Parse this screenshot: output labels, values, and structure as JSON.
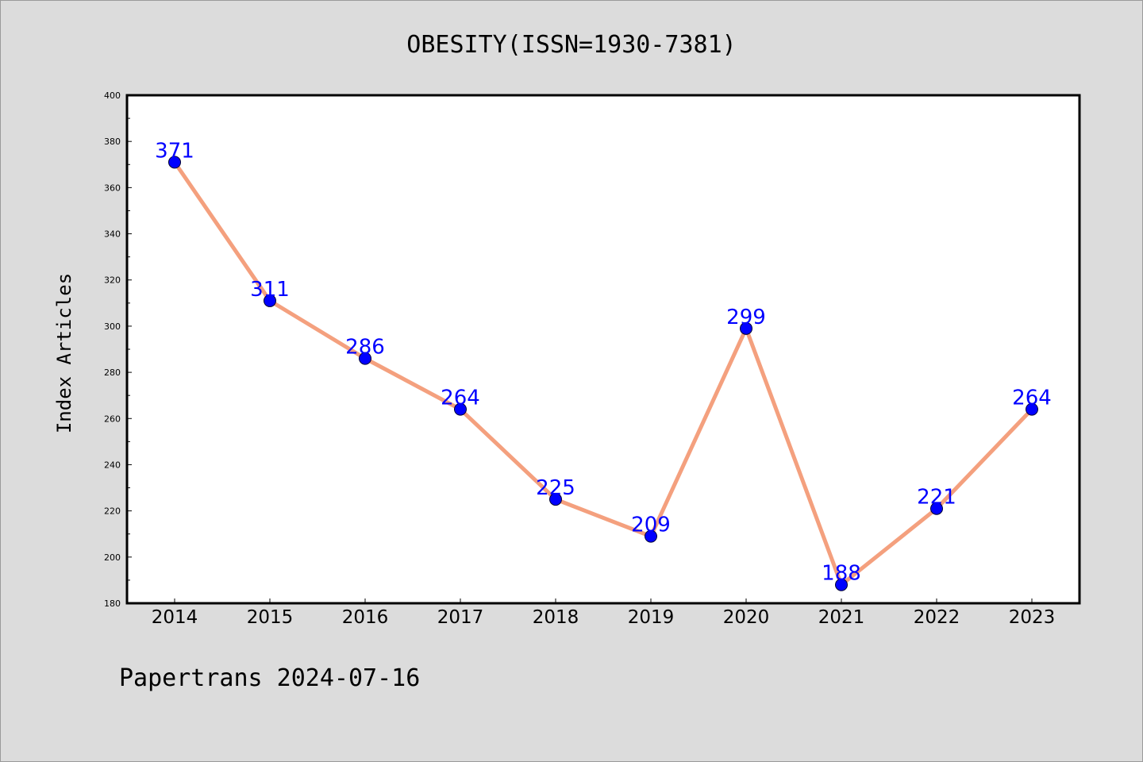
{
  "chart_data": {
    "type": "line",
    "title": "OBESITY(ISSN=1930-7381)",
    "xlabel": "",
    "ylabel": "Index Articles",
    "x": [
      "2014",
      "2015",
      "2016",
      "2017",
      "2018",
      "2019",
      "2020",
      "2021",
      "2022",
      "2023"
    ],
    "values": [
      371,
      311,
      286,
      264,
      225,
      209,
      299,
      188,
      221,
      264
    ],
    "ylim": [
      180,
      400
    ],
    "yticks": [
      "180",
      "200",
      "220",
      "240",
      "260",
      "280",
      "300",
      "320",
      "340",
      "360",
      "380",
      "400"
    ],
    "legend": "none",
    "grid": false
  },
  "footer": {
    "text": "Papertrans 2024-07-16"
  },
  "colors": {
    "background": "#dcdcdc",
    "plot_area": "#ffffff",
    "line": "#f4a07e",
    "marker": "#0000ff",
    "data_label": "#0000ff"
  }
}
